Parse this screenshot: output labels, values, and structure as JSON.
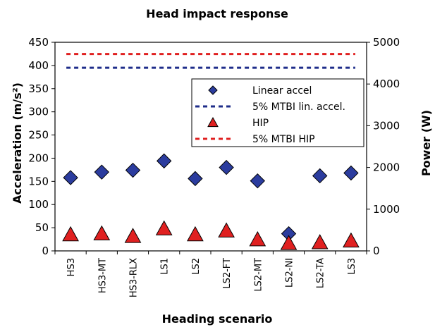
{
  "chart_data": {
    "type": "scatter",
    "title": "Head impact response",
    "xlabel": "Heading scenario",
    "ylabel": "Acceleration (m/s²)",
    "y2label": "Power (W)",
    "categories": [
      "HS3",
      "HS3-MT",
      "HS3-RLX",
      "LS1",
      "LS2",
      "LS2-FT",
      "LS2-MT",
      "LS2-NI",
      "LS2-TA",
      "LS3"
    ],
    "ylim": [
      0,
      450
    ],
    "yticks": [
      0,
      50,
      100,
      150,
      200,
      250,
      300,
      350,
      400,
      450
    ],
    "y2lim": [
      0,
      5000
    ],
    "y2ticks": [
      0,
      1000,
      2000,
      3000,
      4000,
      5000
    ],
    "grid": false,
    "legend_position": "upper-right",
    "series": [
      {
        "name": "Linear accel",
        "axis": "left",
        "marker": "diamond",
        "color": "#2b3c9e",
        "values": [
          158,
          170,
          174,
          194,
          156,
          180,
          151,
          37,
          162,
          168
        ]
      },
      {
        "name": "5% MTBI lin. accel.",
        "axis": "left",
        "style": "dashed-line",
        "color": "#1f2d8a",
        "value": 395
      },
      {
        "name": "HIP",
        "axis": "right",
        "marker": "triangle",
        "color": "#e02020",
        "values": [
          390,
          410,
          350,
          530,
          390,
          480,
          270,
          180,
          200,
          240
        ]
      },
      {
        "name": "5% MTBI HIP",
        "axis": "right",
        "style": "dashed-line",
        "color": "#e02020",
        "value": 4720
      }
    ]
  }
}
